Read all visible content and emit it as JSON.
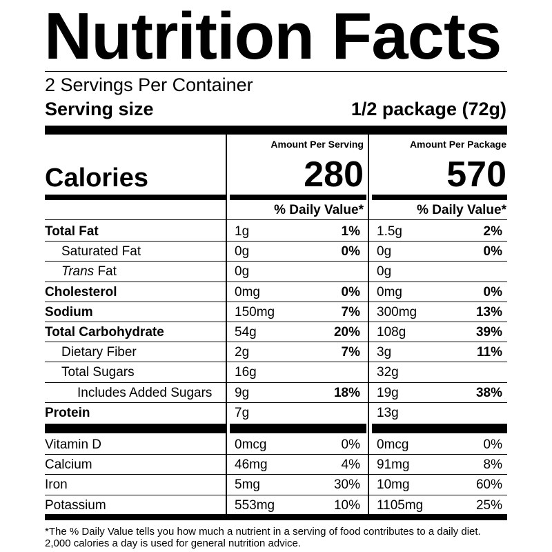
{
  "title": "Nutrition Facts",
  "servings_per_container": "2 Servings Per Container",
  "serving_size": {
    "label": "Serving size",
    "value": "1/2 package (72g)"
  },
  "columns": {
    "per_serving_header": "Amount Per Serving",
    "per_package_header": "Amount Per Package",
    "daily_value_header": "% Daily Value*"
  },
  "calories": {
    "label": "Calories",
    "per_serving": "280",
    "per_package": "570"
  },
  "nutrients": [
    {
      "label": "Total Fat",
      "style": "bold",
      "serv_amt": "1g",
      "serv_pct": "1%",
      "pkg_amt": "1.5g",
      "pkg_pct": "2%"
    },
    {
      "label": "Saturated Fat",
      "style": "ind1",
      "serv_amt": "0g",
      "serv_pct": "0%",
      "pkg_amt": "0g",
      "pkg_pct": "0%"
    },
    {
      "label_italic": "Trans",
      "label": " Fat",
      "style": "ind1",
      "serv_amt": "0g",
      "serv_pct": "",
      "pkg_amt": "0g",
      "pkg_pct": ""
    },
    {
      "label": "Cholesterol",
      "style": "bold",
      "serv_amt": "0mg",
      "serv_pct": "0%",
      "pkg_amt": "0mg",
      "pkg_pct": "0%"
    },
    {
      "label": "Sodium",
      "style": "bold",
      "serv_amt": "150mg",
      "serv_pct": "7%",
      "pkg_amt": "300mg",
      "pkg_pct": "13%"
    },
    {
      "label": "Total Carbohydrate",
      "style": "bold",
      "serv_amt": "54g",
      "serv_pct": "20%",
      "pkg_amt": "108g",
      "pkg_pct": "39%"
    },
    {
      "label": "Dietary Fiber",
      "style": "ind1",
      "serv_amt": "2g",
      "serv_pct": "7%",
      "pkg_amt": "3g",
      "pkg_pct": "11%"
    },
    {
      "label": "Total Sugars",
      "style": "ind1",
      "serv_amt": "16g",
      "serv_pct": "",
      "pkg_amt": "32g",
      "pkg_pct": ""
    },
    {
      "label": "Includes Added Sugars",
      "style": "ind2",
      "serv_amt": "9g",
      "serv_pct": "18%",
      "pkg_amt": "19g",
      "pkg_pct": "38%"
    },
    {
      "label": "Protein",
      "style": "bold",
      "serv_amt": "7g",
      "serv_pct": "",
      "pkg_amt": "13g",
      "pkg_pct": ""
    }
  ],
  "vitamins": [
    {
      "label": "Vitamin D",
      "serv_amt": "0mcg",
      "serv_pct": "0%",
      "pkg_amt": "0mcg",
      "pkg_pct": "0%"
    },
    {
      "label": "Calcium",
      "serv_amt": "46mg",
      "serv_pct": "4%",
      "pkg_amt": "91mg",
      "pkg_pct": "8%"
    },
    {
      "label": "Iron",
      "serv_amt": "5mg",
      "serv_pct": "30%",
      "pkg_amt": "10mg",
      "pkg_pct": "60%"
    },
    {
      "label": "Potassium",
      "serv_amt": "553mg",
      "serv_pct": "10%",
      "pkg_amt": "1105mg",
      "pkg_pct": "25%"
    }
  ],
  "footnote": [
    "*The % Daily Value tells you how much a nutrient in a serving of food contributes to a daily diet.",
    "2,000 calories a day is used for general nutrition advice."
  ]
}
